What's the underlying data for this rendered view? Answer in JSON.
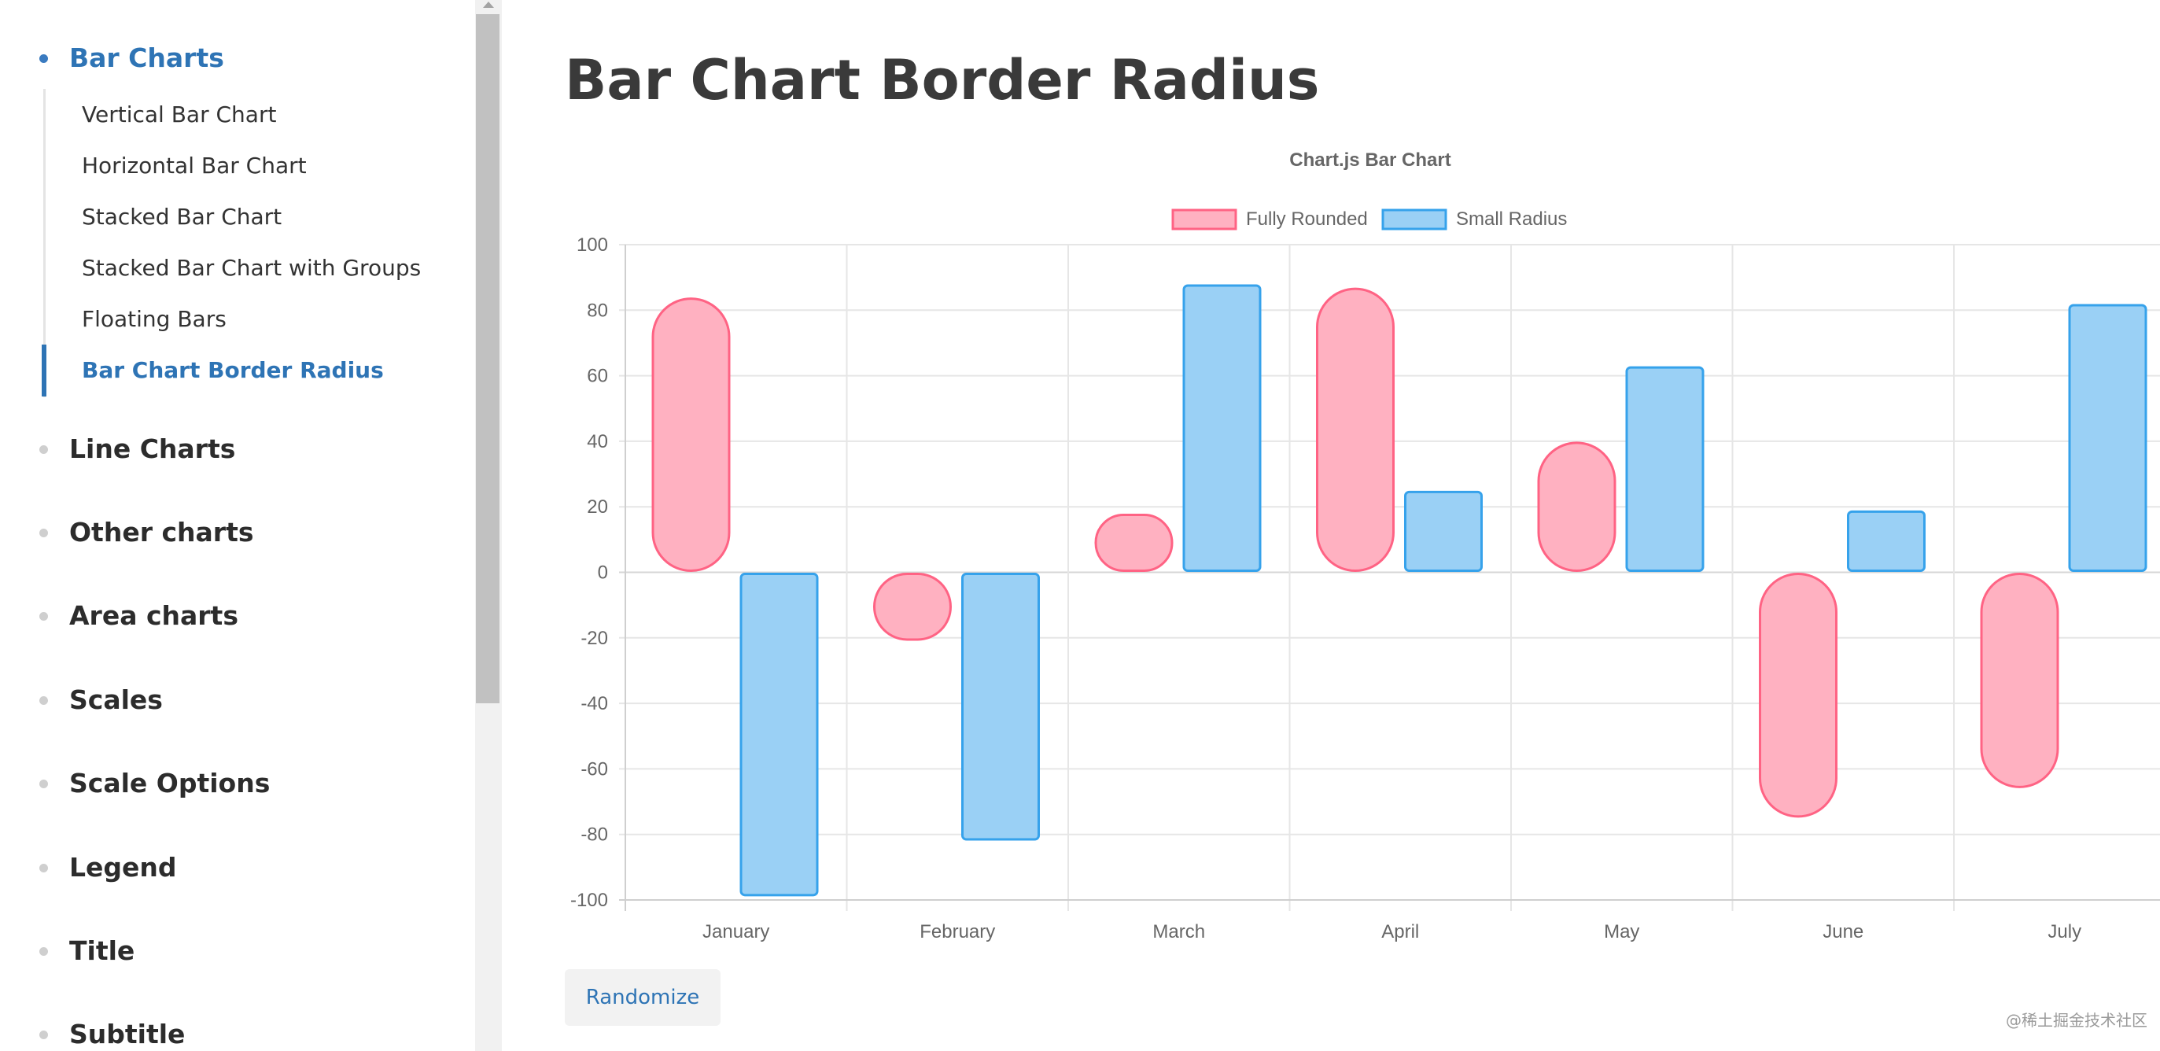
{
  "sidebar": {
    "groups": [
      {
        "label": "Bar Charts",
        "active": true,
        "items": [
          {
            "label": "Vertical Bar Chart"
          },
          {
            "label": "Horizontal Bar Chart"
          },
          {
            "label": "Stacked Bar Chart"
          },
          {
            "label": "Stacked Bar Chart with Groups"
          },
          {
            "label": "Floating Bars"
          },
          {
            "label": "Bar Chart Border Radius",
            "active": true
          }
        ]
      },
      {
        "label": "Line Charts"
      },
      {
        "label": "Other charts"
      },
      {
        "label": "Area charts"
      },
      {
        "label": "Scales"
      },
      {
        "label": "Scale Options"
      },
      {
        "label": "Legend"
      },
      {
        "label": "Title"
      },
      {
        "label": "Subtitle"
      }
    ]
  },
  "main": {
    "title": "Bar Chart Border Radius",
    "randomize_label": "Randomize"
  },
  "watermark": "@稀土掘金技术社区",
  "colors": {
    "accent": "#2e74b5",
    "series_1_fill": "#ffb1c1",
    "series_1_border": "#ff6384",
    "series_2_fill": "#9ad0f5",
    "series_2_border": "#36a2eb"
  },
  "chart_data": {
    "type": "bar",
    "title": "Chart.js Bar Chart",
    "categories": [
      "January",
      "February",
      "March",
      "April",
      "May",
      "June",
      "July"
    ],
    "series": [
      {
        "name": "Fully Rounded",
        "values": [
          84,
          -21,
          18,
          87,
          40,
          -75,
          -66
        ],
        "fill": "#ffb1c1",
        "border": "#ff6384"
      },
      {
        "name": "Small Radius",
        "values": [
          -99,
          -82,
          88,
          25,
          63,
          19,
          82
        ],
        "fill": "#9ad0f5",
        "border": "#36a2eb"
      }
    ],
    "ylim": [
      -100,
      100
    ],
    "yticks": [
      "100",
      "80",
      "60",
      "40",
      "20",
      "0",
      "-20",
      "-40",
      "-60",
      "-80",
      "-100"
    ],
    "xlabel": "",
    "ylabel": "",
    "grid": true,
    "legend_position": "top"
  }
}
